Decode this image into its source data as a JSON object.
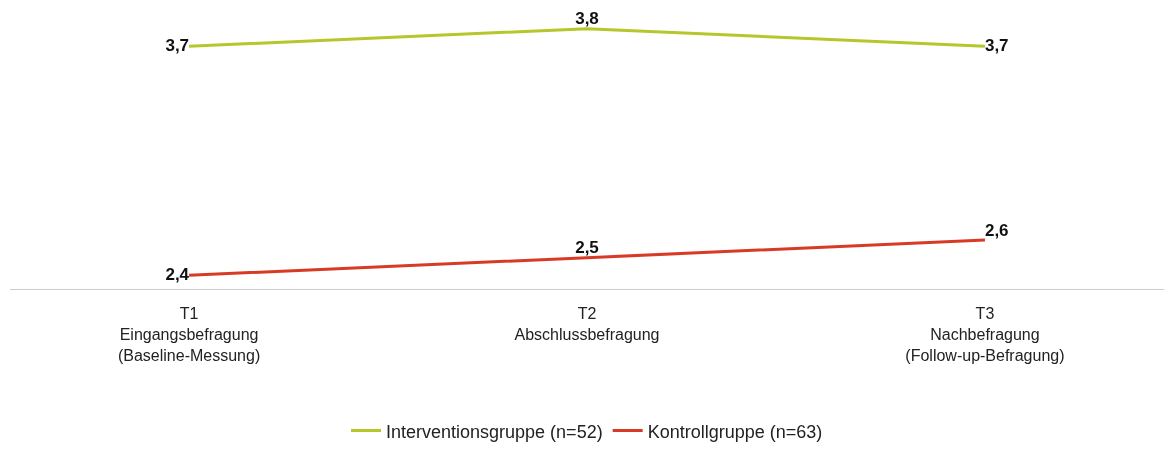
{
  "chart_data": {
    "type": "line",
    "categories": [
      "T1\nEingangsbefragung\n(Baseline-Messung)",
      "T2\nAbschlussbefragung",
      "T3\nNachbefragung\n(Follow-up-Befragung)"
    ],
    "series": [
      {
        "name": "Interventionsgruppe (n=52)",
        "color": "#b5c72a",
        "values": [
          3.7,
          3.8,
          3.7
        ],
        "value_labels": [
          "3,7",
          "3,8",
          "3,7"
        ]
      },
      {
        "name": "Kontrollgruppe (n=63)",
        "color": "#d93a26",
        "values": [
          2.4,
          2.5,
          2.6
        ],
        "value_labels": [
          "2,4",
          "2,5",
          "2,6"
        ]
      }
    ],
    "tick_labels": "x",
    "legend": "bottom",
    "marker": "none",
    "line_style": "solid"
  }
}
